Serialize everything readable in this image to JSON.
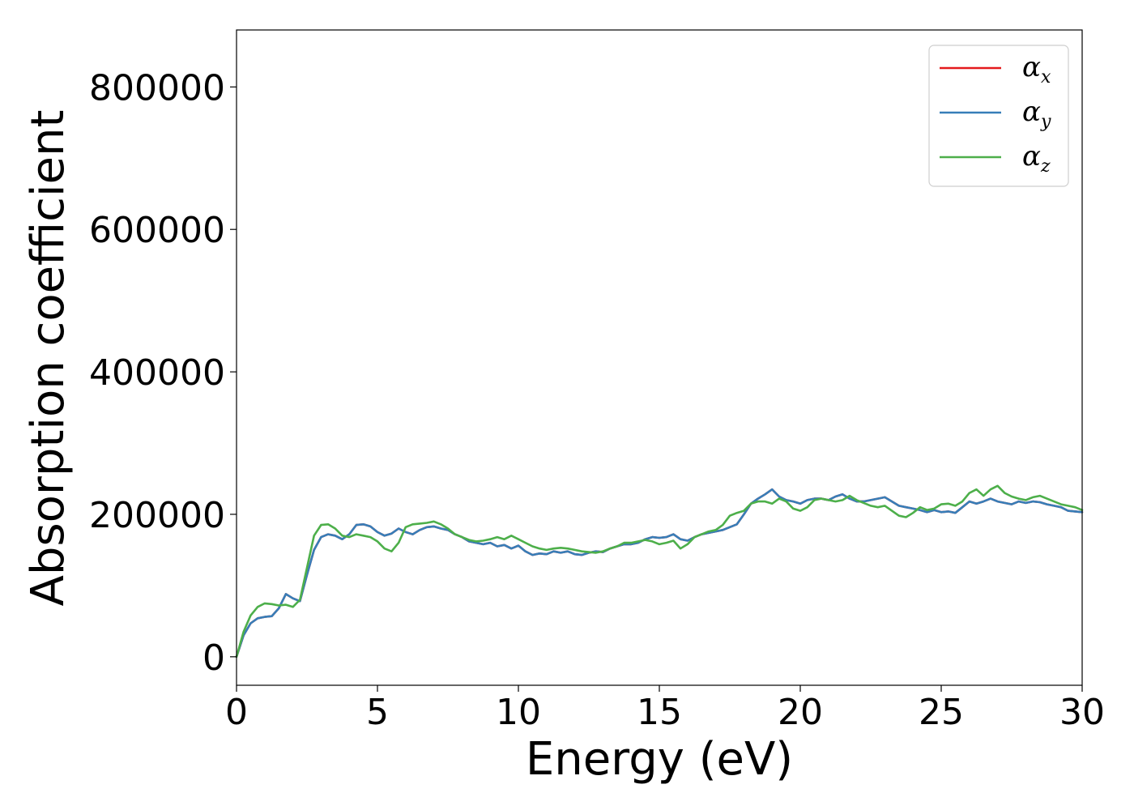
{
  "chart_data": {
    "type": "line",
    "title": "",
    "xlabel": "Energy (eV)",
    "ylabel": "Absorption coefficient",
    "xlim": [
      0,
      30
    ],
    "ylim": [
      -40000,
      880000
    ],
    "xticks": [
      0,
      5,
      10,
      15,
      20,
      25,
      30
    ],
    "xtick_labels": [
      "0",
      "5",
      "10",
      "15",
      "20",
      "25",
      "30"
    ],
    "yticks": [
      0,
      200000,
      400000,
      600000,
      800000
    ],
    "ytick_labels": [
      "0",
      "200000",
      "400000",
      "600000",
      "800000"
    ],
    "grid": false,
    "legend": {
      "position": "top-right"
    },
    "series": [
      {
        "name": "αx",
        "symbol": "α",
        "subscript": "x",
        "color": "#e41a1c",
        "x": [
          0,
          0.25,
          0.5,
          0.75,
          1,
          1.25,
          1.5,
          1.75,
          2,
          2.25,
          2.5,
          2.75,
          3,
          3.25,
          3.5,
          3.75,
          4,
          4.25,
          4.5,
          4.75,
          5,
          5.25,
          5.5,
          5.75,
          6,
          6.25,
          6.5,
          6.75,
          7,
          7.25,
          7.5,
          7.75,
          8,
          8.25,
          8.5,
          8.75,
          9,
          9.25,
          9.5,
          9.75,
          10,
          10.25,
          10.5,
          10.75,
          11,
          11.25,
          11.5,
          11.75,
          12,
          12.25,
          12.5,
          12.75,
          13,
          13.25,
          13.5,
          13.75,
          14,
          14.25,
          14.5,
          14.75,
          15,
          15.25,
          15.5,
          15.75,
          16,
          16.25,
          16.5,
          16.75,
          17,
          17.25,
          17.5,
          17.75,
          18,
          18.25,
          18.5,
          18.75,
          19,
          19.25,
          19.5,
          19.75,
          20,
          20.25,
          20.5,
          20.75,
          21,
          21.25,
          21.5,
          21.75,
          22,
          22.25,
          22.5,
          22.75,
          23,
          23.25,
          23.5,
          23.75,
          24,
          24.25,
          24.5,
          24.75,
          25,
          25.25,
          25.5,
          25.75,
          26,
          26.25,
          26.5,
          26.75,
          27,
          27.25,
          27.5,
          27.75,
          28,
          28.25,
          28.5,
          28.75,
          29,
          29.25,
          29.5,
          29.75,
          30
        ],
        "values": [
          0,
          30000,
          47000,
          54000,
          56000,
          57000,
          68000,
          88000,
          82000,
          78000,
          115000,
          150000,
          168000,
          172000,
          170000,
          165000,
          172000,
          185000,
          186000,
          183000,
          175000,
          170000,
          173000,
          180000,
          175000,
          172000,
          178000,
          182000,
          183000,
          180000,
          178000,
          172000,
          168000,
          162000,
          160000,
          158000,
          160000,
          155000,
          157000,
          152000,
          156000,
          148000,
          143000,
          145000,
          144000,
          148000,
          146000,
          148000,
          144000,
          143000,
          146000,
          148000,
          147000,
          152000,
          155000,
          158000,
          158000,
          160000,
          165000,
          168000,
          167000,
          168000,
          172000,
          165000,
          163000,
          168000,
          172000,
          174000,
          176000,
          178000,
          182000,
          186000,
          200000,
          215000,
          222000,
          228000,
          235000,
          225000,
          220000,
          218000,
          215000,
          220000,
          222000,
          222000,
          220000,
          225000,
          228000,
          222000,
          218000,
          218000,
          220000,
          222000,
          224000,
          218000,
          212000,
          210000,
          208000,
          206000,
          203000,
          206000,
          203000,
          204000,
          202000,
          210000,
          218000,
          215000,
          218000,
          222000,
          218000,
          216000,
          214000,
          218000,
          216000,
          218000,
          217000,
          214000,
          212000,
          210000,
          205000,
          204000,
          203000
        ],
        "z": 1
      },
      {
        "name": "αy",
        "symbol": "α",
        "subscript": "y",
        "color": "#377eb8",
        "x": [
          0,
          0.25,
          0.5,
          0.75,
          1,
          1.25,
          1.5,
          1.75,
          2,
          2.25,
          2.5,
          2.75,
          3,
          3.25,
          3.5,
          3.75,
          4,
          4.25,
          4.5,
          4.75,
          5,
          5.25,
          5.5,
          5.75,
          6,
          6.25,
          6.5,
          6.75,
          7,
          7.25,
          7.5,
          7.75,
          8,
          8.25,
          8.5,
          8.75,
          9,
          9.25,
          9.5,
          9.75,
          10,
          10.25,
          10.5,
          10.75,
          11,
          11.25,
          11.5,
          11.75,
          12,
          12.25,
          12.5,
          12.75,
          13,
          13.25,
          13.5,
          13.75,
          14,
          14.25,
          14.5,
          14.75,
          15,
          15.25,
          15.5,
          15.75,
          16,
          16.25,
          16.5,
          16.75,
          17,
          17.25,
          17.5,
          17.75,
          18,
          18.25,
          18.5,
          18.75,
          19,
          19.25,
          19.5,
          19.75,
          20,
          20.25,
          20.5,
          20.75,
          21,
          21.25,
          21.5,
          21.75,
          22,
          22.25,
          22.5,
          22.75,
          23,
          23.25,
          23.5,
          23.75,
          24,
          24.25,
          24.5,
          24.75,
          25,
          25.25,
          25.5,
          25.75,
          26,
          26.25,
          26.5,
          26.75,
          27,
          27.25,
          27.5,
          27.75,
          28,
          28.25,
          28.5,
          28.75,
          29,
          29.25,
          29.5,
          29.75,
          30
        ],
        "values": [
          0,
          30000,
          47000,
          54000,
          56000,
          57000,
          68000,
          88000,
          82000,
          78000,
          115000,
          150000,
          168000,
          172000,
          170000,
          165000,
          172000,
          185000,
          186000,
          183000,
          175000,
          170000,
          173000,
          180000,
          175000,
          172000,
          178000,
          182000,
          183000,
          180000,
          178000,
          172000,
          168000,
          162000,
          160000,
          158000,
          160000,
          155000,
          157000,
          152000,
          156000,
          148000,
          143000,
          145000,
          144000,
          148000,
          146000,
          148000,
          144000,
          143000,
          146000,
          148000,
          147000,
          152000,
          155000,
          158000,
          158000,
          160000,
          165000,
          168000,
          167000,
          168000,
          172000,
          165000,
          163000,
          168000,
          172000,
          174000,
          176000,
          178000,
          182000,
          186000,
          200000,
          215000,
          222000,
          228000,
          235000,
          225000,
          220000,
          218000,
          215000,
          220000,
          222000,
          222000,
          220000,
          225000,
          228000,
          222000,
          218000,
          218000,
          220000,
          222000,
          224000,
          218000,
          212000,
          210000,
          208000,
          206000,
          203000,
          206000,
          203000,
          204000,
          202000,
          210000,
          218000,
          215000,
          218000,
          222000,
          218000,
          216000,
          214000,
          218000,
          216000,
          218000,
          217000,
          214000,
          212000,
          210000,
          205000,
          204000,
          203000
        ],
        "z": 2
      },
      {
        "name": "αz",
        "symbol": "α",
        "subscript": "z",
        "color": "#4daf4a",
        "x": [
          0,
          0.25,
          0.5,
          0.75,
          1,
          1.25,
          1.5,
          1.75,
          2,
          2.25,
          2.5,
          2.75,
          3,
          3.25,
          3.5,
          3.75,
          4,
          4.25,
          4.5,
          4.75,
          5,
          5.25,
          5.5,
          5.75,
          6,
          6.25,
          6.5,
          6.75,
          7,
          7.25,
          7.5,
          7.75,
          8,
          8.25,
          8.5,
          8.75,
          9,
          9.25,
          9.5,
          9.75,
          10,
          10.25,
          10.5,
          10.75,
          11,
          11.25,
          11.5,
          11.75,
          12,
          12.25,
          12.5,
          12.75,
          13,
          13.25,
          13.5,
          13.75,
          14,
          14.25,
          14.5,
          14.75,
          15,
          15.25,
          15.5,
          15.75,
          16,
          16.25,
          16.5,
          16.75,
          17,
          17.25,
          17.5,
          17.75,
          18,
          18.25,
          18.5,
          18.75,
          19,
          19.25,
          19.5,
          19.75,
          20,
          20.25,
          20.5,
          20.75,
          21,
          21.25,
          21.5,
          21.75,
          22,
          22.25,
          22.5,
          22.75,
          23,
          23.25,
          23.5,
          23.75,
          24,
          24.25,
          24.5,
          24.75,
          25,
          25.25,
          25.5,
          25.75,
          26,
          26.25,
          26.5,
          26.75,
          27,
          27.25,
          27.5,
          27.75,
          28,
          28.25,
          28.5,
          28.75,
          29,
          29.25,
          29.5,
          29.75,
          30
        ],
        "values": [
          0,
          35000,
          58000,
          70000,
          75000,
          74000,
          72000,
          73000,
          70000,
          80000,
          125000,
          170000,
          185000,
          186000,
          180000,
          170000,
          168000,
          172000,
          170000,
          168000,
          162000,
          152000,
          148000,
          160000,
          182000,
          186000,
          187000,
          188000,
          190000,
          186000,
          180000,
          172000,
          168000,
          164000,
          162000,
          163000,
          165000,
          168000,
          165000,
          170000,
          165000,
          160000,
          155000,
          152000,
          150000,
          152000,
          153000,
          152000,
          150000,
          148000,
          147000,
          146000,
          148000,
          152000,
          155000,
          160000,
          160000,
          162000,
          164000,
          162000,
          158000,
          160000,
          163000,
          152000,
          158000,
          168000,
          172000,
          176000,
          178000,
          185000,
          198000,
          202000,
          205000,
          215000,
          218000,
          218000,
          215000,
          222000,
          218000,
          208000,
          205000,
          210000,
          220000,
          222000,
          220000,
          218000,
          220000,
          226000,
          220000,
          216000,
          212000,
          210000,
          212000,
          205000,
          198000,
          196000,
          202000,
          210000,
          206000,
          208000,
          214000,
          215000,
          212000,
          218000,
          230000,
          235000,
          226000,
          235000,
          240000,
          230000,
          225000,
          222000,
          220000,
          224000,
          226000,
          222000,
          218000,
          214000,
          212000,
          210000,
          206000
        ],
        "z": 3
      }
    ]
  }
}
